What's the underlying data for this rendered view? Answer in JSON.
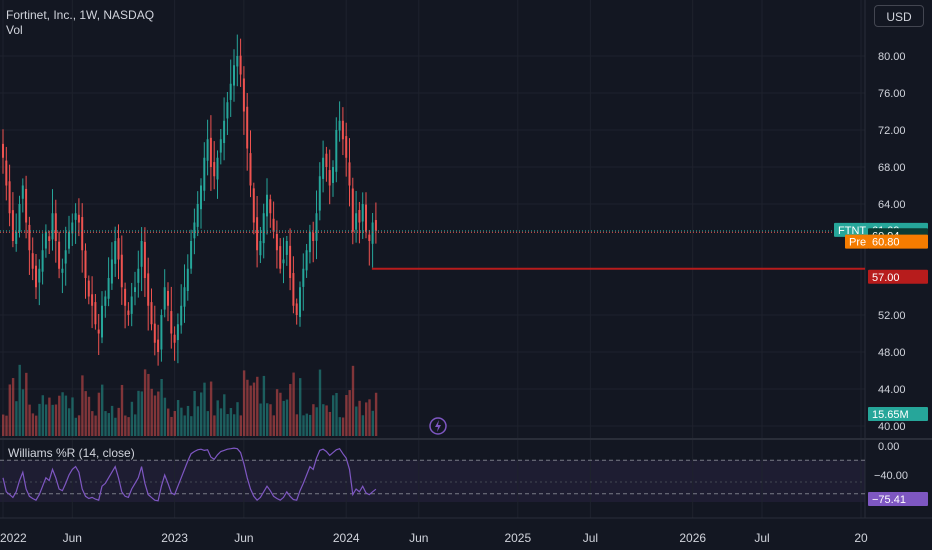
{
  "header": {
    "symbol_line": "Fortinet, Inc., 1W, NASDAQ",
    "volume_label": "Vol",
    "currency": "USD"
  },
  "price_axis": {
    "ticks": [
      "80.00",
      "76.00",
      "72.00",
      "68.00",
      "64.00",
      "52.00",
      "48.00",
      "44.00",
      "40.00"
    ]
  },
  "time_axis": {
    "labels": [
      "2022",
      "Jun",
      "2023",
      "Jun",
      "2024",
      "Jun",
      "2025",
      "Jul",
      "2026",
      "Jul",
      "20"
    ]
  },
  "price_tags": {
    "ticker": "FTNT",
    "last": "61.09",
    "prev_close": "60.94",
    "pre_label": "Pre",
    "pre_value": "60.80",
    "low_line": "57.00",
    "volume": "15.65M"
  },
  "indicator": {
    "title": "Williams %R (14, close)",
    "ticks": [
      "0.00",
      "−40.00"
    ],
    "current": "−75.41"
  },
  "colors": {
    "up": "#26a69a",
    "down": "#ef5350",
    "wpr": "#7e57c2",
    "bg": "#131722",
    "pre": "#f57c00",
    "low_line": "#b71c1c"
  },
  "chart_data": [
    {
      "type": "candlestick",
      "title": "Fortinet, Inc., 1W, NASDAQ",
      "ylim": [
        40,
        82
      ],
      "x_labels": [
        "2022",
        "Jun",
        "2023",
        "Jun",
        "2024",
        "Jun",
        "2025",
        "Jul",
        "2026",
        "Jul",
        "20"
      ],
      "x_ticks_weeks": [
        0,
        21,
        52,
        73,
        104,
        126,
        156,
        178,
        209,
        230,
        260
      ],
      "y_ticks": [
        40,
        44,
        48,
        52,
        64,
        68,
        72,
        76,
        80
      ],
      "closes": [
        69,
        66,
        63,
        60,
        61,
        64,
        66,
        62,
        59,
        57,
        55,
        57,
        59,
        61,
        60,
        63,
        60,
        57,
        57,
        59,
        61,
        62,
        63,
        62,
        59,
        56,
        54,
        53,
        51,
        50,
        53,
        54,
        56,
        58,
        60,
        58,
        55,
        53,
        52,
        54,
        55,
        57,
        60,
        56,
        53,
        51,
        49,
        48,
        52,
        55,
        53,
        50,
        49,
        51,
        53,
        55,
        57,
        60,
        62,
        64,
        66,
        69,
        71,
        68,
        67,
        69,
        71,
        73,
        75,
        77,
        79,
        80,
        78,
        74,
        70,
        66,
        62,
        59,
        60,
        63,
        65,
        63,
        61,
        59,
        57,
        58,
        60,
        56,
        53,
        52,
        55,
        57,
        59,
        61,
        60,
        63,
        67,
        69,
        68,
        66,
        68,
        72,
        73,
        71,
        69,
        66,
        61,
        63,
        62,
        64,
        61,
        60,
        62,
        61.09
      ],
      "last_price": 61.09,
      "prev_close": 60.94,
      "premarket": 60.8,
      "horizontal_line": 57.0,
      "volume_last": "15.65M"
    },
    {
      "type": "line",
      "title": "Williams %R (14, close)",
      "ylim": [
        -100,
        0
      ],
      "levels": [
        -20,
        -80
      ],
      "y_ticks": [
        0,
        -40
      ],
      "values": [
        -55,
        -80,
        -85,
        -90,
        -80,
        -60,
        -45,
        -75,
        -88,
        -92,
        -95,
        -85,
        -70,
        -55,
        -60,
        -40,
        -55,
        -75,
        -78,
        -65,
        -50,
        -40,
        -35,
        -45,
        -75,
        -88,
        -92,
        -90,
        -93,
        -95,
        -70,
        -65,
        -55,
        -45,
        -35,
        -55,
        -80,
        -88,
        -90,
        -75,
        -65,
        -55,
        -35,
        -65,
        -85,
        -90,
        -95,
        -96,
        -70,
        -50,
        -65,
        -82,
        -85,
        -70,
        -55,
        -40,
        -25,
        -12,
        -8,
        -5,
        -4,
        -6,
        -5,
        -18,
        -22,
        -14,
        -8,
        -6,
        -4,
        -3,
        -2,
        -3,
        -10,
        -30,
        -55,
        -75,
        -88,
        -95,
        -90,
        -80,
        -70,
        -78,
        -88,
        -92,
        -95,
        -90,
        -80,
        -88,
        -94,
        -95,
        -78,
        -65,
        -50,
        -35,
        -40,
        -20,
        -6,
        -4,
        -8,
        -15,
        -10,
        -5,
        -3,
        -12,
        -20,
        -40,
        -85,
        -75,
        -80,
        -70,
        -82,
        -85,
        -80,
        -75.41
      ],
      "current": -75.41
    }
  ]
}
